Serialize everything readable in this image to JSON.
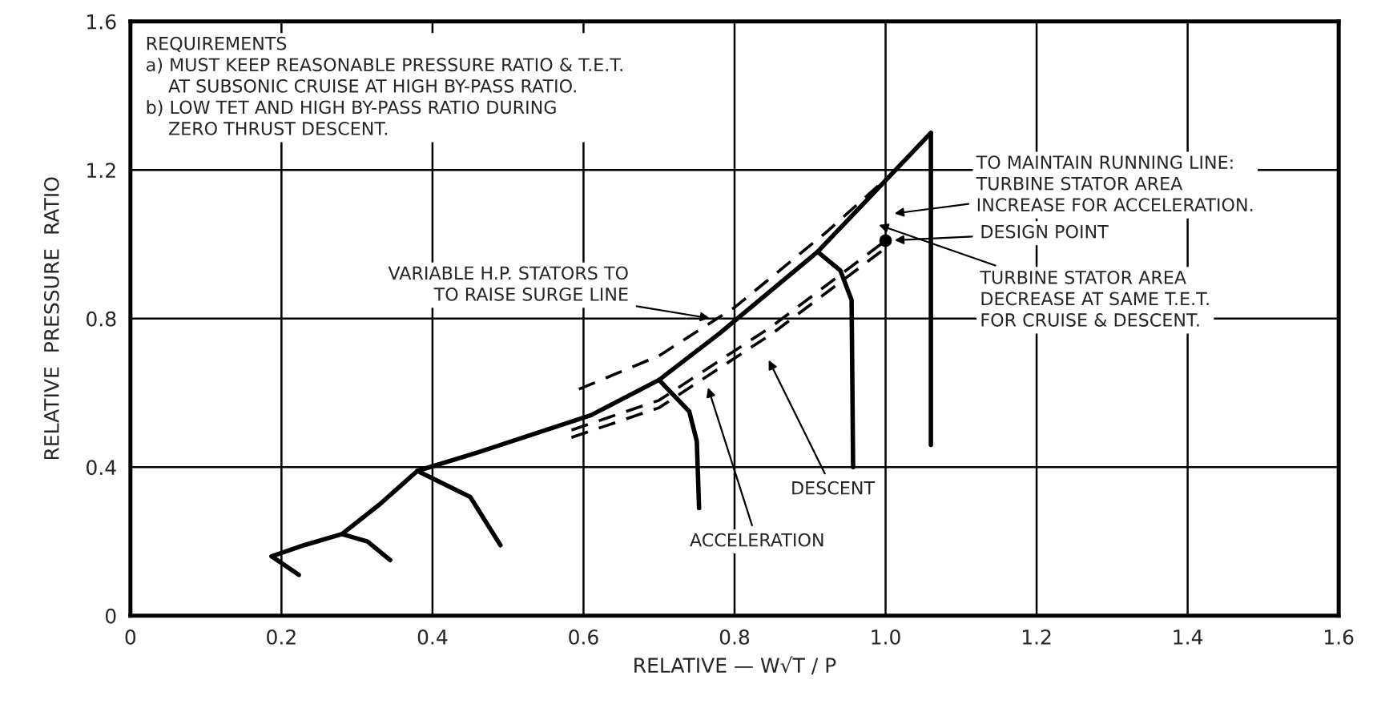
{
  "chart_data": {
    "type": "line",
    "xlabel": "RELATIVE — W√T / P",
    "ylabel": "RELATIVE  PRESSURE  RATIO",
    "xlim": [
      0,
      1.6
    ],
    "ylim": [
      0,
      1.6
    ],
    "xticks": [
      0,
      0.2,
      0.4,
      0.6,
      0.8,
      {
        "value": 1.0,
        "label": "1.0"
      },
      1.2,
      1.4,
      1.6
    ],
    "yticks": [
      0,
      0.4,
      0.8,
      1.2,
      1.6
    ],
    "grid": true,
    "series": [
      {
        "color": "#000000",
        "line_style": "solid",
        "x": [
          0.187,
          0.23,
          0.28,
          0.33,
          0.38,
          0.46,
          0.61,
          0.7,
          0.78,
          0.91,
          1.06
        ],
        "values": [
          0.16,
          0.19,
          0.22,
          0.3,
          0.39,
          0.44,
          0.54,
          0.635,
          0.76,
          0.98,
          1.3
        ]
      },
      {
        "color": "#000000",
        "line_style": "solid",
        "x": [
          1.06,
          1.06
        ],
        "values": [
          1.3,
          0.46
        ]
      },
      {
        "color": "#000000",
        "line_style": "solid",
        "x": [
          0.187,
          0.223
        ],
        "values": [
          0.16,
          0.11
        ]
      },
      {
        "color": "#000000",
        "line_style": "solid",
        "x": [
          0.28,
          0.314,
          0.344
        ],
        "values": [
          0.22,
          0.2,
          0.15
        ]
      },
      {
        "color": "#000000",
        "line_style": "solid",
        "x": [
          0.38,
          0.45,
          0.49
        ],
        "values": [
          0.39,
          0.32,
          0.19
        ]
      },
      {
        "color": "#000000",
        "line_style": "solid",
        "x": [
          0.7,
          0.74,
          0.75,
          0.753
        ],
        "values": [
          0.635,
          0.55,
          0.47,
          0.29
        ]
      },
      {
        "color": "#000000",
        "line_style": "solid",
        "x": [
          0.91,
          0.94,
          0.955,
          0.957
        ],
        "values": [
          0.98,
          0.93,
          0.85,
          0.4
        ]
      },
      {
        "color": "#000000",
        "line_style": "dashed",
        "x": [
          0.594,
          0.7,
          0.8,
          0.92,
          1.03
        ],
        "values": [
          0.61,
          0.7,
          0.83,
          1.03,
          1.23
        ]
      },
      {
        "color": "#000000",
        "line_style": "dashed",
        "x": [
          0.584,
          0.7,
          0.85,
          1.0
        ],
        "values": [
          0.5,
          0.58,
          0.78,
          1.01
        ]
      },
      {
        "color": "#000000",
        "line_style": "dashed",
        "x": [
          0.584,
          0.7,
          0.85,
          1.0
        ],
        "values": [
          0.48,
          0.56,
          0.76,
          0.99
        ]
      },
      {
        "type": "scatter",
        "color": "#000000",
        "marker": "circle",
        "x": [
          1.0
        ],
        "values": [
          1.01
        ]
      }
    ],
    "annotations": [
      "REQUIREMENTS\na) MUST KEEP REASONABLE PRESSURE RATIO & T.E.T.\n    AT SUBSONIC CRUISE AT HIGH BY-PASS RATIO.\nb) LOW TET AND HIGH BY-PASS RATIO DURING\n    ZERO THRUST DESCENT.",
      {
        "text": "VARIABLE H.P. STATORS TO\nTO RAISE SURGE LINE",
        "x": 0.77,
        "y": 0.8
      },
      "TO MAINTAIN RUNNING LINE:\nTURBINE STATOR AREA\nINCREASE FOR ACCELERATION.",
      "DESIGN POINT",
      "TURBINE STATOR AREA\nDECREASE AT SAME T.E.T.\nFOR CRUISE & DESCENT.",
      "DESCENT",
      {
        "text": "ACCELERATION",
        "x": 0.764,
        "y": 0.62
      }
    ]
  }
}
